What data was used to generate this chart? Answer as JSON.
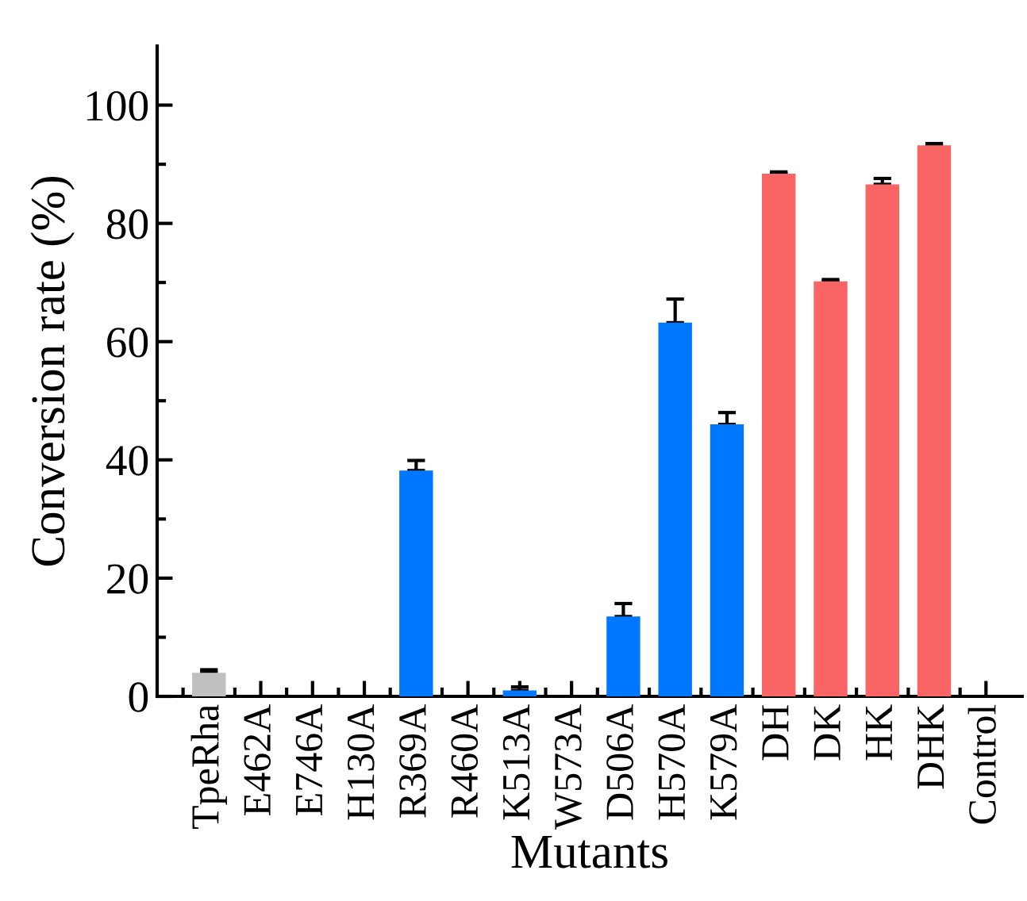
{
  "chart_data": {
    "type": "bar",
    "xlabel": "Mutants",
    "ylabel": "Conversion rate (%)",
    "categories": [
      "TpeRha",
      "E462A",
      "E746A",
      "H130A",
      "R369A",
      "R460A",
      "K513A",
      "W573A",
      "D506A",
      "H570A",
      "K579A",
      "DH",
      "DK",
      "HK",
      "DHK",
      "Control"
    ],
    "values": [
      4.0,
      0,
      0,
      0,
      38.2,
      0,
      1.0,
      0,
      13.5,
      63.2,
      46.0,
      88.4,
      70.2,
      86.6,
      93.2,
      0
    ],
    "errors": [
      0.5,
      null,
      null,
      null,
      1.7,
      null,
      0.6,
      null,
      2.2,
      4.0,
      2.0,
      0.3,
      0.3,
      1.0,
      0.3,
      null
    ],
    "colors": [
      "#c0c0c0",
      "#0077ff",
      "#0077ff",
      "#0077ff",
      "#0077ff",
      "#0077ff",
      "#0077ff",
      "#0077ff",
      "#0077ff",
      "#0077ff",
      "#0077ff",
      "#f96464",
      "#f96464",
      "#f96464",
      "#f96464",
      "#f96464"
    ],
    "ylim": [
      0,
      110
    ],
    "yticks": [
      0,
      20,
      40,
      60,
      80,
      100
    ],
    "grid": false,
    "legend": false
  }
}
